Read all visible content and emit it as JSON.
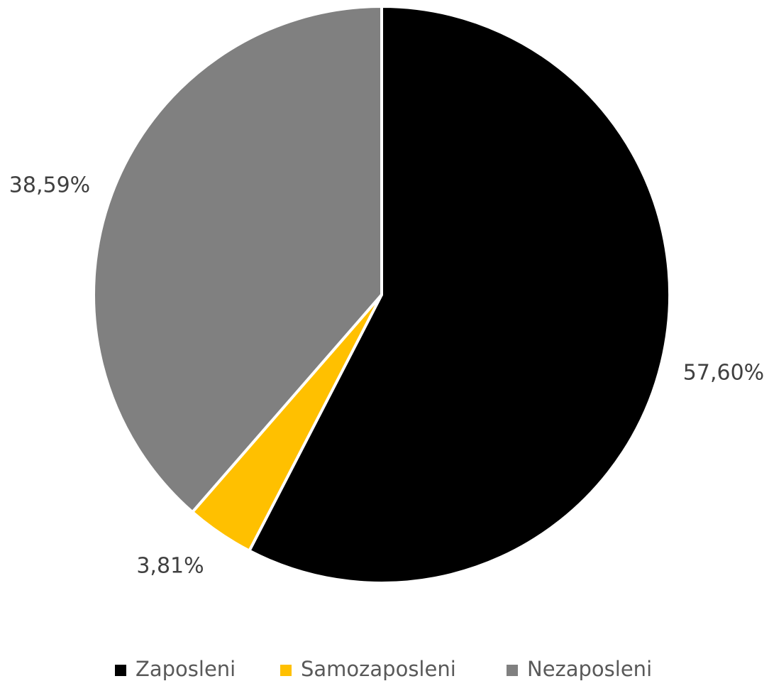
{
  "chart_data": {
    "type": "pie",
    "slices": [
      {
        "name": "Zaposleni",
        "value": 57.6,
        "label": "57,60%",
        "color": "#000000"
      },
      {
        "name": "Samozaposleni",
        "value": 3.81,
        "label": "3,81%",
        "color": "#FFC000"
      },
      {
        "name": "Nezaposleni",
        "value": 38.59,
        "label": "38,59%",
        "color": "#808080"
      }
    ],
    "start_angle": "12 o'clock, clockwise",
    "legend_position": "bottom"
  }
}
